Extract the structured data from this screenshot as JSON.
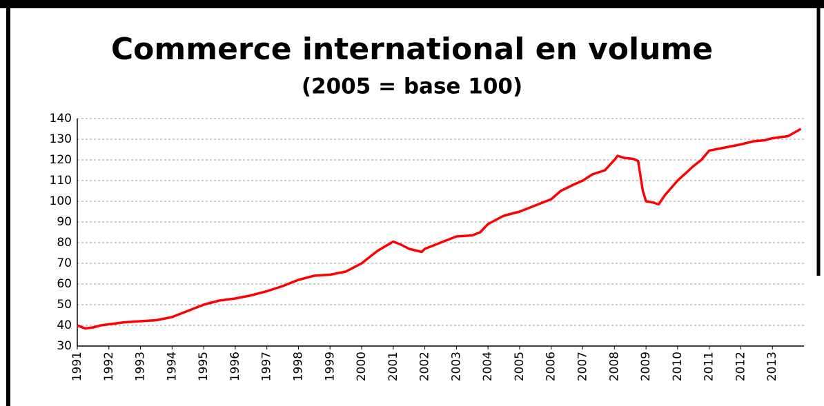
{
  "chart_data": {
    "type": "line",
    "title": "Commerce international en volume",
    "subtitle": "(2005 = base 100)",
    "series": [
      {
        "name": "Commerce international en volume",
        "color": "#ff0000",
        "x": [
          1991.0,
          1991.25,
          1991.5,
          1991.75,
          1992.0,
          1992.5,
          1993.0,
          1993.5,
          1994.0,
          1994.5,
          1995.0,
          1995.5,
          1996.0,
          1996.5,
          1997.0,
          1997.5,
          1998.0,
          1998.5,
          1999.0,
          1999.5,
          2000.0,
          2000.5,
          2001.0,
          2001.25,
          2001.5,
          2001.9,
          2002.0,
          2002.5,
          2003.0,
          2003.5,
          2003.75,
          2004.0,
          2004.5,
          2005.0,
          2005.5,
          2006.0,
          2006.3,
          2006.7,
          2007.0,
          2007.3,
          2007.7,
          2008.0,
          2008.1,
          2008.3,
          2008.6,
          2008.75,
          2008.9,
          2009.0,
          2009.2,
          2009.4,
          2009.6,
          2010.0,
          2010.5,
          2010.75,
          2011.0,
          2011.5,
          2012.0,
          2012.4,
          2012.75,
          2013.0,
          2013.5,
          2013.9
        ],
        "values": [
          40,
          38.5,
          39,
          40,
          40.5,
          41.5,
          42,
          42.5,
          44,
          47,
          50,
          52,
          53,
          54.5,
          56.5,
          59,
          62,
          64,
          64.5,
          66,
          70,
          76,
          80.5,
          79,
          77,
          75.5,
          77,
          80,
          83,
          83.5,
          85,
          89,
          93,
          95,
          98,
          101,
          105,
          108,
          110,
          113,
          115,
          120,
          122,
          121,
          120.5,
          119.5,
          105,
          100,
          99.5,
          98.5,
          103,
          110,
          117,
          120,
          124.5,
          126,
          127.5,
          129,
          129.5,
          130.5,
          131.5,
          135
        ]
      }
    ],
    "xlim": [
      1991,
      2014
    ],
    "xticks": [
      1991,
      1992,
      1993,
      1994,
      1995,
      1996,
      1997,
      1998,
      1999,
      2000,
      2001,
      2002,
      2003,
      2004,
      2005,
      2006,
      2007,
      2008,
      2009,
      2010,
      2011,
      2012,
      2013
    ],
    "ylim": [
      30,
      140
    ],
    "yticks": [
      30,
      40,
      50,
      60,
      70,
      80,
      90,
      100,
      110,
      120,
      130,
      140
    ],
    "grid": true
  }
}
